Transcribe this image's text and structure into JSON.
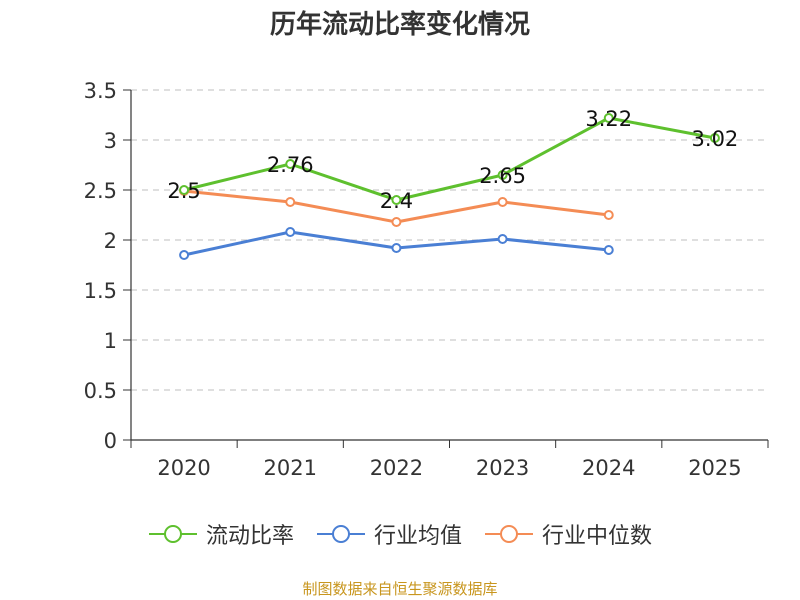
{
  "chart_data": {
    "type": "line",
    "title": "历年流动比率变化情况",
    "categories": [
      "2020",
      "2021",
      "2022",
      "2023",
      "2024",
      "2025"
    ],
    "ylim": [
      0,
      3.5
    ],
    "y_ticks": [
      "0",
      "0.5",
      "1",
      "1.5",
      "2",
      "2.5",
      "3",
      "3.5"
    ],
    "grid": true,
    "legend_position": "bottom",
    "series": [
      {
        "name": "流动比率",
        "color": "#5ec02e",
        "values": [
          2.5,
          2.76,
          2.4,
          2.65,
          3.22,
          3.02
        ],
        "labels": [
          "2.5",
          "2.76",
          "2.4",
          "2.65",
          "3.22",
          "3.02"
        ]
      },
      {
        "name": "行业均值",
        "color": "#4a7fd4",
        "values": [
          1.85,
          2.08,
          1.92,
          2.01,
          1.9,
          null
        ]
      },
      {
        "name": "行业中位数",
        "color": "#f48c55",
        "values": [
          2.49,
          2.38,
          2.18,
          2.38,
          2.25,
          null
        ]
      }
    ],
    "source": "制图数据来自恒生聚源数据库"
  }
}
